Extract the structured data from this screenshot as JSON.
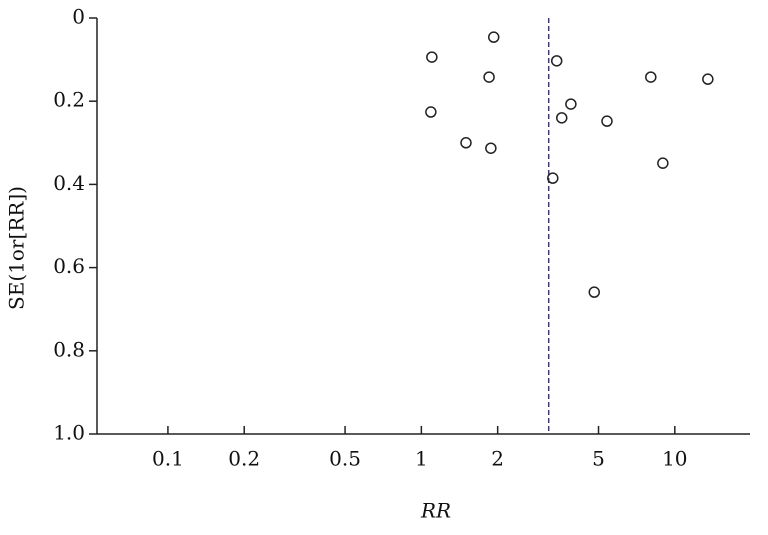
{
  "chart_data": {
    "type": "scatter",
    "xlabel": "RR",
    "ylabel": "SE(1or[RR])",
    "x": [
      1.1,
      1.93,
      1.85,
      1.09,
      1.5,
      1.88,
      3.42,
      3.89,
      3.58,
      5.4,
      8.04,
      13.5,
      8.97,
      3.3,
      4.81
    ],
    "values": [
      0.094,
      0.046,
      0.142,
      0.226,
      0.3,
      0.313,
      0.103,
      0.207,
      0.24,
      0.248,
      0.142,
      0.147,
      0.349,
      0.385,
      0.659
    ],
    "color": "#222222",
    "reference_line": 3.18,
    "reference_color": "#3a3a7a",
    "xscale": "log",
    "xlim": [
      0.0525,
      19.8
    ],
    "xticks": [
      0.1,
      0.2,
      0.5,
      1,
      2,
      5,
      10
    ],
    "ylim": [
      0,
      1
    ],
    "yticks": [
      0,
      0.2,
      0.4,
      0.6,
      0.8,
      {
        "value": 1,
        "label": "1.0"
      }
    ],
    "y_reversed": true,
    "grid": false
  }
}
